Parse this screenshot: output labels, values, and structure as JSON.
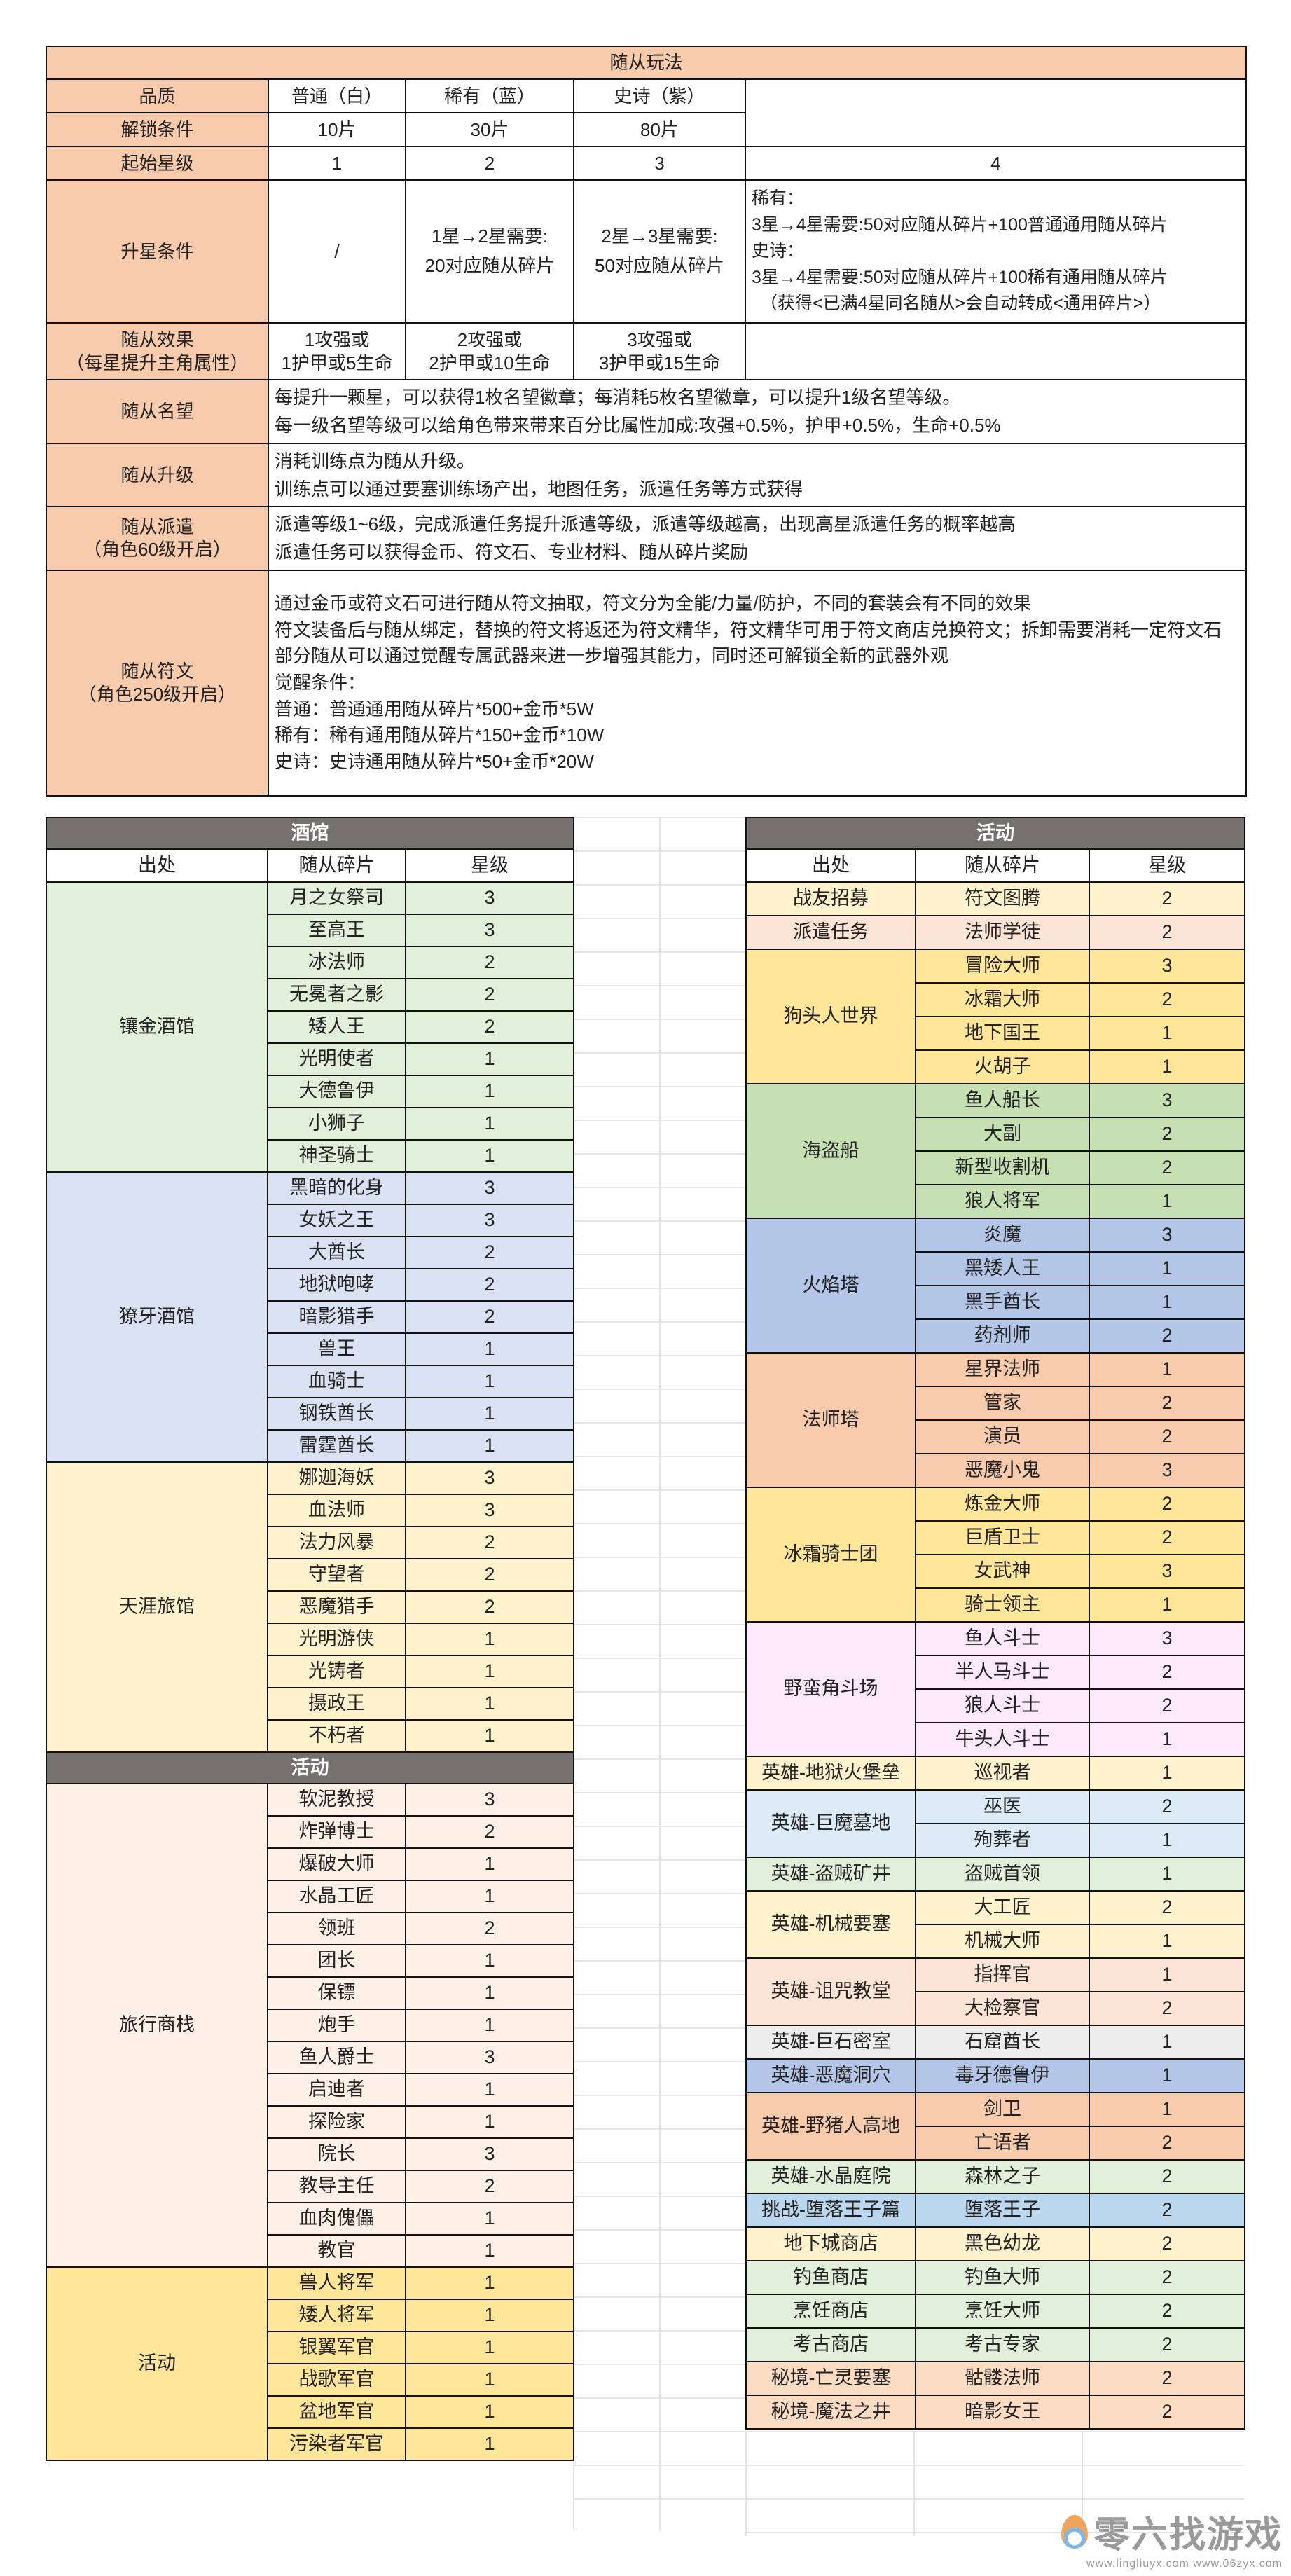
{
  "top": {
    "title": "随从玩法",
    "quality": {
      "label": "品质",
      "values": [
        "普通（白）",
        "稀有（蓝）",
        "史诗（紫）"
      ]
    },
    "unlock": {
      "label": "解锁条件",
      "values": [
        "10片",
        "30片",
        "80片"
      ]
    },
    "start_star": {
      "label": "起始星级",
      "values": [
        "1",
        "2",
        "3",
        "4"
      ]
    },
    "upgrade": {
      "label": "升星条件",
      "values": [
        "/",
        "1星→2星需要:",
        "20对应随从碎片",
        "2星→3星需要:",
        "50对应随从碎片"
      ],
      "star4_lines": [
        "稀有：",
        "3星→4星需要:50对应随从碎片+100普通通用随从碎片",
        "史诗：",
        "3星→4星需要:50对应随从碎片+100稀有通用随从碎片",
        "（获得<已满4星同名随从>会自动转成<通用碎片>）"
      ]
    },
    "effect": {
      "label": "随从效果",
      "label_sub": "（每星提升主角属性）",
      "values": [
        [
          "1攻强或",
          "1护甲或5生命"
        ],
        [
          "2攻强或",
          "2护甲或10生命"
        ],
        [
          "3攻强或",
          "3护甲或15生命"
        ]
      ]
    },
    "fame": {
      "label": "随从名望",
      "lines": [
        "每提升一颗星，可以获得1枚名望徽章；每消耗5枚名望徽章，可以提升1级名望等级。",
        "每一级名望等级可以给角色带来带来百分比属性加成:攻强+0.5%，护甲+0.5%，生命+0.5%"
      ]
    },
    "levelup": {
      "label": "随从升级",
      "lines": [
        "消耗训练点为随从升级。",
        "训练点可以通过要塞训练场产出，地图任务，派遣任务等方式获得"
      ]
    },
    "dispatch": {
      "label": "随从派遣",
      "label_sub": "（角色60级开启）",
      "lines": [
        "派遣等级1~6级，完成派遣任务提升派遣等级，派遣等级越高，出现高星派遣任务的概率越高",
        "派遣任务可以获得金币、符文石、专业材料、随从碎片奖励"
      ]
    },
    "rune": {
      "label": "随从符文",
      "label_sub": "（角色250级开启）",
      "lines": [
        "通过金币或符文石可进行随从符文抽取，符文分为全能/力量/防护，不同的套装会有不同的效果",
        "符文装备后与随从绑定，替换的符文将返还为符文精华，符文精华可用于符文商店兑换符文；拆卸需要消耗一定符文石",
        "部分随从可以通过觉醒专属武器来进一步增强其能力，同时还可解锁全新的武器外观",
        "觉醒条件：",
        "普通：普通通用随从碎片*500+金币*5W",
        "稀有：稀有通用随从碎片*150+金币*10W",
        "史诗：史诗通用随从碎片*50+金币*20W"
      ]
    }
  },
  "left": {
    "headers": [
      "出处",
      "随从碎片",
      "星级"
    ],
    "sections": [
      {
        "title": "酒馆",
        "groups": [
          {
            "source": "镶金酒馆",
            "color": "#E2EFDA",
            "items": [
              [
                "月之女祭司",
                "3"
              ],
              [
                "至高王",
                "3"
              ],
              [
                "冰法师",
                "2"
              ],
              [
                "无冕者之影",
                "2"
              ],
              [
                "矮人王",
                "2"
              ],
              [
                "光明使者",
                "1"
              ],
              [
                "大德鲁伊",
                "1"
              ],
              [
                "小狮子",
                "1"
              ],
              [
                "神圣骑士",
                "1"
              ]
            ]
          },
          {
            "source": "獠牙酒馆",
            "color": "#D9E1F2",
            "items": [
              [
                "黑暗的化身",
                "3"
              ],
              [
                "女妖之王",
                "3"
              ],
              [
                "大酋长",
                "2"
              ],
              [
                "地狱咆哮",
                "2"
              ],
              [
                "暗影猎手",
                "2"
              ],
              [
                "兽王",
                "1"
              ],
              [
                "血骑士",
                "1"
              ],
              [
                "钢铁酋长",
                "1"
              ],
              [
                "雷霆酋长",
                "1"
              ]
            ]
          },
          {
            "source": "天涯旅馆",
            "color": "#FFF2CC",
            "items": [
              [
                "娜迦海妖",
                "3"
              ],
              [
                "血法师",
                "3"
              ],
              [
                "法力风暴",
                "2"
              ],
              [
                "守望者",
                "2"
              ],
              [
                "恶魔猎手",
                "2"
              ],
              [
                "光明游侠",
                "1"
              ],
              [
                "光铸者",
                "1"
              ],
              [
                "摄政王",
                "1"
              ],
              [
                "不朽者",
                "1"
              ]
            ]
          }
        ]
      },
      {
        "title": "活动",
        "groups": [
          {
            "source": "旅行商栈",
            "color": "#FFF1E8",
            "items": [
              [
                "软泥教授",
                "3"
              ],
              [
                "炸弹博士",
                "2"
              ],
              [
                "爆破大师",
                "1"
              ],
              [
                "水晶工匠",
                "1"
              ],
              [
                "领班",
                "2"
              ],
              [
                "团长",
                "1"
              ],
              [
                "保镖",
                "1"
              ],
              [
                "炮手",
                "1"
              ],
              [
                "鱼人爵士",
                "3"
              ],
              [
                "启迪者",
                "1"
              ],
              [
                "探险家",
                "1"
              ],
              [
                "院长",
                "3"
              ],
              [
                "教导主任",
                "2"
              ],
              [
                "血肉傀儡",
                "1"
              ],
              [
                "教官",
                "1"
              ]
            ]
          },
          {
            "source": "活动",
            "color": "#FFE699",
            "items": [
              [
                "兽人将军",
                "1"
              ],
              [
                "矮人将军",
                "1"
              ],
              [
                "银翼军官",
                "1"
              ],
              [
                "战歌军官",
                "1"
              ],
              [
                "盆地军官",
                "1"
              ],
              [
                "污染者军官",
                "1"
              ]
            ]
          }
        ]
      }
    ]
  },
  "right": {
    "headers": [
      "出处",
      "随从碎片",
      "星级"
    ],
    "sections": [
      {
        "title": "活动",
        "groups": [
          {
            "source": "战友招募",
            "color": "#FFF2CC",
            "items": [
              [
                "符文图腾",
                "2"
              ]
            ]
          },
          {
            "source": "派遣任务",
            "color": "#FCE4D6",
            "items": [
              [
                "法师学徒",
                "2"
              ]
            ]
          },
          {
            "source": "狗头人世界",
            "color": "#FFE699",
            "items": [
              [
                "冒险大师",
                "3"
              ],
              [
                "冰霜大师",
                "2"
              ],
              [
                "地下国王",
                "1"
              ],
              [
                "火胡子",
                "1"
              ]
            ]
          },
          {
            "source": "海盗船",
            "color": "#C6E0B4",
            "items": [
              [
                "鱼人船长",
                "3"
              ],
              [
                "大副",
                "2"
              ],
              [
                "新型收割机",
                "2"
              ],
              [
                "狼人将军",
                "1"
              ]
            ]
          },
          {
            "source": "火焰塔",
            "color": "#B4C6E7",
            "items": [
              [
                "炎魔",
                "3"
              ],
              [
                "黑矮人王",
                "1"
              ],
              [
                "黑手酋长",
                "1"
              ],
              [
                "药剂师",
                "2"
              ]
            ]
          },
          {
            "source": "法师塔",
            "color": "#F8CBAD",
            "items": [
              [
                "星界法师",
                "1"
              ],
              [
                "管家",
                "2"
              ],
              [
                "演员",
                "2"
              ],
              [
                "恶魔小鬼",
                "3"
              ]
            ]
          },
          {
            "source": "冰霜骑士团",
            "color": "#FFE699",
            "items": [
              [
                "炼金大师",
                "2"
              ],
              [
                "巨盾卫士",
                "2"
              ],
              [
                "女武神",
                "3"
              ],
              [
                "骑士领主",
                "1"
              ]
            ]
          },
          {
            "source": "野蛮角斗场",
            "color": "#FBE9FB",
            "items": [
              [
                "鱼人斗士",
                "3"
              ],
              [
                "半人马斗士",
                "2"
              ],
              [
                "狼人斗士",
                "2"
              ],
              [
                "牛头人斗士",
                "1"
              ]
            ]
          },
          {
            "source": "英雄-地狱火堡垒",
            "color": "#FFF2CC",
            "items": [
              [
                "巡视者",
                "1"
              ]
            ]
          },
          {
            "source": "英雄-巨魔墓地",
            "color": "#DDEBF7",
            "items": [
              [
                "巫医",
                "2"
              ],
              [
                "殉葬者",
                "1"
              ]
            ]
          },
          {
            "source": "英雄-盗贼矿井",
            "color": "#E2EFDA",
            "items": [
              [
                "盗贼首领",
                "1"
              ]
            ]
          },
          {
            "source": "英雄-机械要塞",
            "color": "#FFF2CC",
            "items": [
              [
                "大工匠",
                "2"
              ],
              [
                "机械大师",
                "1"
              ]
            ]
          },
          {
            "source": "英雄-诅咒教堂",
            "color": "#FCE4D6",
            "items": [
              [
                "指挥官",
                "1"
              ],
              [
                "大检察官",
                "2"
              ]
            ]
          },
          {
            "source": "英雄-巨石密室",
            "color": "#EDEDED",
            "items": [
              [
                "石窟酋长",
                "1"
              ]
            ]
          },
          {
            "source": "英雄-恶魔洞穴",
            "color": "#B4C6E7",
            "items": [
              [
                "毒牙德鲁伊",
                "1"
              ]
            ]
          },
          {
            "source": "英雄-野猪人高地",
            "color": "#F8CBAD",
            "items": [
              [
                "剑卫",
                "1"
              ],
              [
                "亡语者",
                "2"
              ]
            ]
          },
          {
            "source": "英雄-水晶庭院",
            "color": "#E2EFDA",
            "items": [
              [
                "森林之子",
                "2"
              ]
            ]
          },
          {
            "source": "挑战-堕落王子篇",
            "color": "#BDD7EE",
            "items": [
              [
                "堕落王子",
                "2"
              ]
            ]
          },
          {
            "source": "地下城商店",
            "color": "#FFF2CC",
            "items": [
              [
                "黑色幼龙",
                "2"
              ]
            ]
          },
          {
            "source": "钓鱼商店",
            "color": "#E2EFDA",
            "items": [
              [
                "钓鱼大师",
                "2"
              ]
            ]
          },
          {
            "source": "烹饪商店",
            "color": "#E2EFDA",
            "items": [
              [
                "烹饪大师",
                "2"
              ]
            ]
          },
          {
            "source": "考古商店",
            "color": "#E2EFDA",
            "items": [
              [
                "考古专家",
                "2"
              ]
            ]
          },
          {
            "source": "秘境-亡灵要塞",
            "color": "#FDDCC4",
            "items": [
              [
                "骷髅法师",
                "2"
              ]
            ]
          },
          {
            "source": "秘境-魔法之井",
            "color": "#FDDCC4",
            "items": [
              [
                "暗影女王",
                "2"
              ]
            ]
          }
        ]
      }
    ]
  },
  "watermark": {
    "brand": "零六找游戏",
    "urls": "www.lingliuyx.com   www.06zyx.com"
  }
}
